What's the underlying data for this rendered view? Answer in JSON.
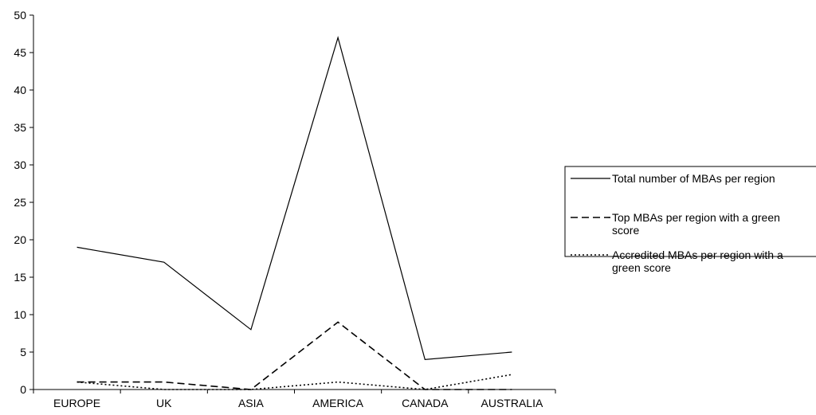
{
  "chart_data": {
    "type": "line",
    "title": "",
    "xlabel": "",
    "ylabel": "",
    "categories": [
      "EUROPE",
      "UK",
      "ASIA",
      "AMERICA",
      "CANADA",
      "AUSTRALIA"
    ],
    "ylim": [
      0,
      50
    ],
    "yticks": [
      0,
      5,
      10,
      15,
      20,
      25,
      30,
      35,
      40,
      45,
      50
    ],
    "grid": false,
    "legend_position": "right",
    "series": [
      {
        "name": "Total number of MBAs per region",
        "values": [
          19,
          17,
          8,
          47,
          4,
          5
        ],
        "dash": "solid",
        "color": "#000000"
      },
      {
        "name": "Top MBAs per region with a green score",
        "values": [
          1,
          1,
          0,
          9,
          0,
          0
        ],
        "dash": "dashed",
        "color": "#000000"
      },
      {
        "name": "Accredited MBAs per region with a green score",
        "values": [
          1,
          0,
          0,
          1,
          0,
          2
        ],
        "dash": "dotted",
        "color": "#000000"
      }
    ]
  }
}
